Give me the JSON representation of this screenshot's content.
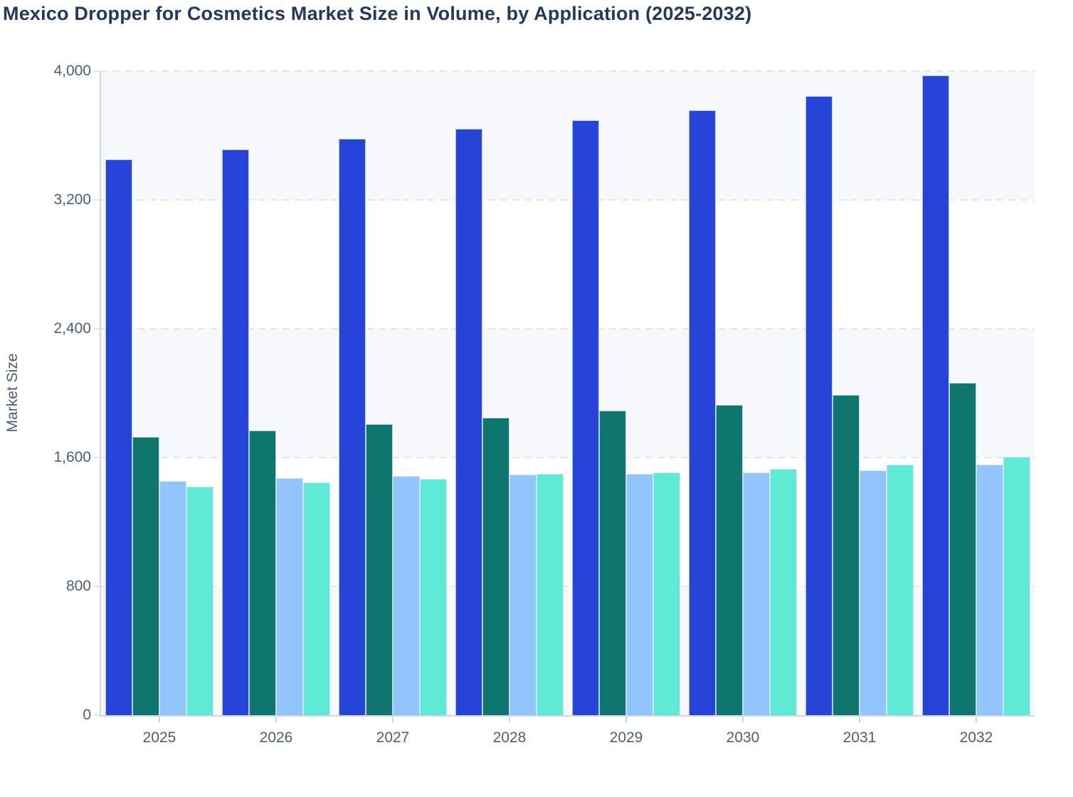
{
  "title": "Mexico Dropper for Cosmetics Market Size in Volume, by Application (2025-2032)",
  "chart_data": {
    "type": "bar",
    "title": "Mexico Dropper for Cosmetics Market Size in Volume, by Application (2025-2032)",
    "xlabel": "",
    "ylabel": "Market Size",
    "ylim": [
      0,
      4000
    ],
    "yticks": [
      0,
      800,
      1600,
      2400,
      3200,
      4000
    ],
    "ytick_labels": [
      "0",
      "800",
      "1,600",
      "2,400",
      "3,200",
      "4,000"
    ],
    "categories": [
      "2025",
      "2026",
      "2027",
      "2028",
      "2029",
      "2030",
      "2031",
      "2032"
    ],
    "legend": "none",
    "grid": "horizontal-dashed",
    "plot_band_colors": [
      "#f7f8fb",
      "#ffffff"
    ],
    "series": [
      {
        "name": "blue",
        "color": "#2644d8",
        "values": [
          3450,
          3515,
          3580,
          3640,
          3695,
          3755,
          3845,
          3975
        ]
      },
      {
        "name": "teal",
        "color": "#0f766e",
        "values": [
          1727,
          1770,
          1808,
          1848,
          1890,
          1928,
          1988,
          2065
        ]
      },
      {
        "name": "light-blue",
        "color": "#93c5fd",
        "values": [
          1455,
          1472,
          1483,
          1492,
          1500,
          1508,
          1520,
          1556
        ]
      },
      {
        "name": "turquoise",
        "color": "#5eead4",
        "values": [
          1418,
          1447,
          1469,
          1497,
          1507,
          1528,
          1557,
          1605
        ]
      }
    ]
  }
}
